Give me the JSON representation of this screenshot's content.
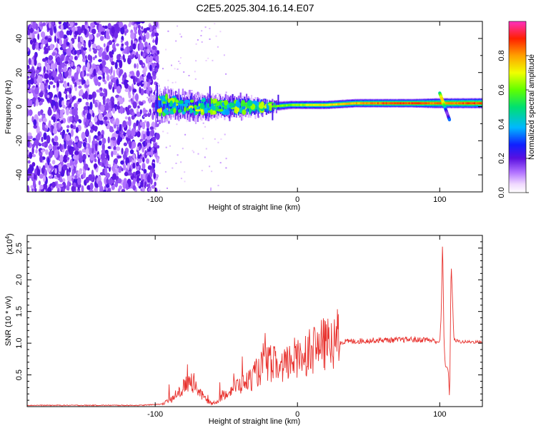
{
  "title": "C2E5.2025.304.16.14.E07",
  "colors": {
    "snr_line": "#e8322e",
    "frame": "#000000"
  },
  "chart_data": [
    {
      "type": "heatmap",
      "name": "spectrogram",
      "xlabel": "Height of straight line (km)",
      "ylabel": "Frequency (Hz)",
      "xlim": [
        -190,
        130
      ],
      "ylim": [
        -50,
        50
      ],
      "xticks": [
        -100,
        0,
        100
      ],
      "xtick_labels": [
        "-100",
        "0",
        "100"
      ],
      "yticks": [
        -40,
        -20,
        0,
        20,
        40
      ],
      "ytick_labels": [
        "-40",
        "-20",
        "0",
        "20",
        "40"
      ],
      "noise_region_end_km": -98,
      "colorbar": {
        "label": "Normalized spectral amplitude",
        "range": [
          0,
          1
        ],
        "ticks": [
          0.0,
          0.2,
          0.4,
          0.6,
          0.8
        ],
        "tick_labels": [
          "0.0",
          "0.2",
          "0.4",
          "0.6",
          "0.8"
        ]
      },
      "band_profile": [
        {
          "x": -100,
          "center": 1,
          "half_width": 10,
          "amp": 0.3
        },
        {
          "x": -90,
          "center": 1,
          "half_width": 8,
          "amp": 0.38
        },
        {
          "x": -70,
          "center": 0,
          "half_width": 7,
          "amp": 0.42
        },
        {
          "x": -50,
          "center": 0,
          "half_width": 6,
          "amp": 0.48
        },
        {
          "x": -30,
          "center": 0,
          "half_width": 5,
          "amp": 0.55
        },
        {
          "x": -20,
          "center": 0,
          "half_width": 3,
          "amp": 0.6
        },
        {
          "x": -5,
          "center": 1,
          "half_width": 2.5,
          "amp": 0.62
        },
        {
          "x": 0,
          "center": 1,
          "half_width": 2.5,
          "amp": 0.65
        },
        {
          "x": 20,
          "center": 1,
          "half_width": 2.5,
          "amp": 0.72
        },
        {
          "x": 40,
          "center": 2,
          "half_width": 2.5,
          "amp": 0.78
        },
        {
          "x": 60,
          "center": 2,
          "half_width": 2.5,
          "amp": 0.85
        },
        {
          "x": 80,
          "center": 2,
          "half_width": 2.5,
          "amp": 0.88
        },
        {
          "x": 100,
          "center": 2,
          "half_width": 3,
          "amp": 0.82
        },
        {
          "x": 130,
          "center": 2,
          "half_width": 3,
          "amp": 0.88
        }
      ]
    },
    {
      "type": "line",
      "name": "snr",
      "xlabel": "Height of straight line (km)",
      "ylabel": "SNR (10 * v/v)",
      "y_multiplier_label": "(x10",
      "y_multiplier_exponent": "4",
      "y_multiplier_close": ")",
      "xlim": [
        -190,
        130
      ],
      "ylim": [
        0,
        2.7
      ],
      "xticks": [
        -100,
        0,
        100
      ],
      "xtick_labels": [
        "-100",
        "0",
        "100"
      ],
      "yticks": [
        0.5,
        1.0,
        1.5,
        2.0,
        2.5
      ],
      "ytick_labels": [
        "0.5",
        "1.0",
        "1.5",
        "2.0",
        "2.5"
      ],
      "series": [
        {
          "name": "SNR",
          "x": [
            -190,
            -110,
            -95,
            -85,
            -80,
            -76,
            -72,
            -68,
            -64,
            -60,
            -55,
            -50,
            -45,
            -40,
            -35,
            -30,
            -25,
            -20,
            -15,
            -12,
            -10,
            -5,
            0,
            5,
            10,
            15,
            20,
            25,
            30,
            40,
            50,
            60,
            70,
            80,
            85,
            90,
            95,
            100,
            101,
            102,
            103,
            104,
            105,
            106,
            107,
            108,
            110,
            115,
            120,
            125,
            130
          ],
          "y": [
            0.02,
            0.02,
            0.04,
            0.15,
            0.3,
            0.45,
            0.35,
            0.2,
            0.1,
            0.05,
            0.1,
            0.22,
            0.3,
            0.35,
            0.4,
            0.5,
            0.62,
            0.7,
            0.65,
            0.55,
            0.62,
            0.72,
            0.8,
            0.85,
            0.9,
            0.95,
            0.98,
            1.0,
            1.02,
            1.03,
            1.04,
            1.05,
            1.05,
            1.06,
            1.05,
            1.06,
            1.04,
            1.02,
            1.4,
            2.65,
            1.0,
            0.65,
            0.6,
            0.6,
            0.1,
            2.3,
            1.05,
            1.02,
            1.02,
            1.02,
            1.02
          ]
        }
      ]
    }
  ]
}
